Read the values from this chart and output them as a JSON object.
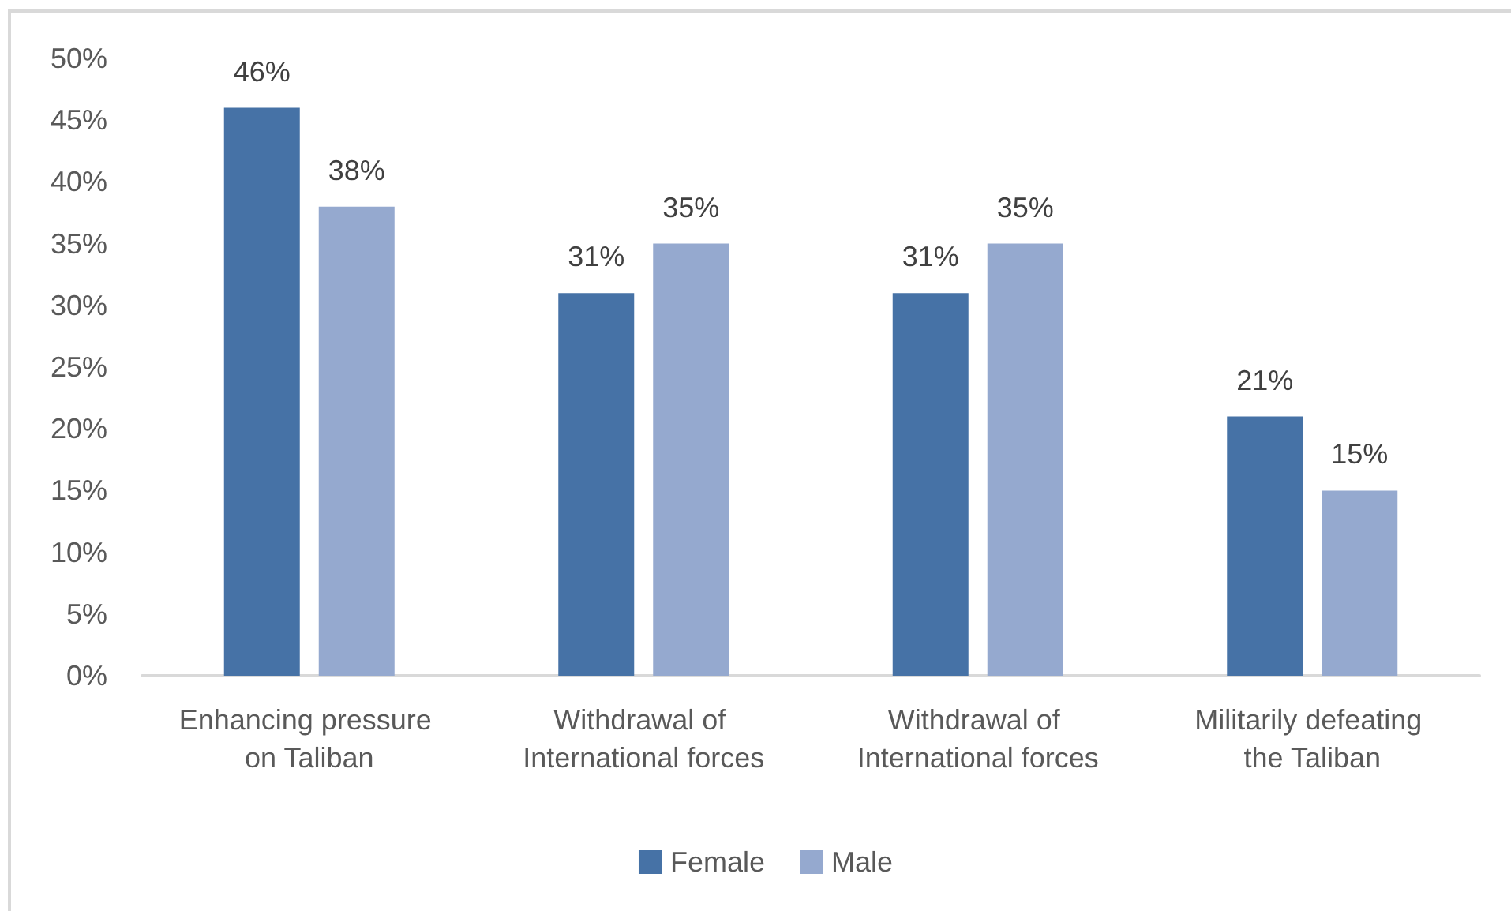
{
  "chart_data": {
    "type": "bar",
    "categories": [
      "Enhancing pressure on Taliban",
      "Withdrawal of International forces",
      "Withdrawal of International forces",
      "Militarily defeating the Taliban"
    ],
    "series": [
      {
        "name": "Female",
        "color": "#4672a6",
        "values": [
          46,
          31,
          31,
          21
        ],
        "value_labels": [
          "46%",
          "31%",
          "31%",
          "21%"
        ]
      },
      {
        "name": "Male",
        "color": "#95a9cf",
        "values": [
          38,
          35,
          35,
          15
        ],
        "value_labels": [
          "38%",
          "35%",
          "35%",
          "15%"
        ]
      }
    ],
    "ylim": [
      0,
      50
    ],
    "yticks": [
      {
        "value": 0,
        "label": "0%"
      },
      {
        "value": 5,
        "label": "5%"
      },
      {
        "value": 10,
        "label": "10%"
      },
      {
        "value": 15,
        "label": "15%"
      },
      {
        "value": 20,
        "label": "20%"
      },
      {
        "value": 25,
        "label": "25%"
      },
      {
        "value": 30,
        "label": "30%"
      },
      {
        "value": 35,
        "label": "35%"
      },
      {
        "value": 40,
        "label": "40%"
      },
      {
        "value": 45,
        "label": "45%"
      },
      {
        "value": 50,
        "label": "50%"
      }
    ],
    "grid": false,
    "legend": "bottom"
  }
}
